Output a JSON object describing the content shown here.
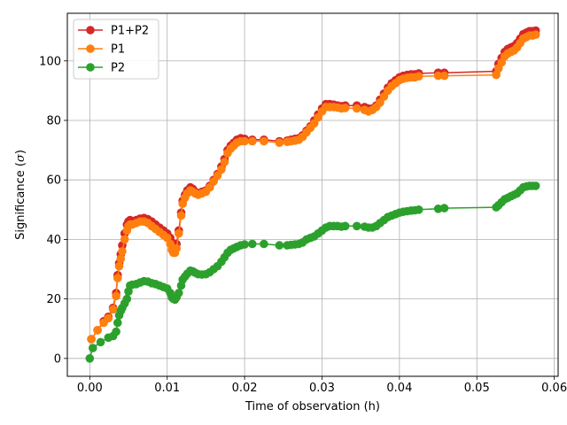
{
  "chart_data": {
    "type": "line",
    "title": "",
    "xlabel": "Time of observation (h)",
    "ylabel_prefix": "Significance (",
    "ylabel_symbol": "σ",
    "ylabel_suffix": ")",
    "xlim": [
      -0.0029,
      0.0605
    ],
    "ylim": [
      -6,
      116
    ],
    "xticks": [
      0.0,
      0.01,
      0.02,
      0.03,
      0.04,
      0.05,
      0.06
    ],
    "xtick_labels": [
      "0.00",
      "0.01",
      "0.02",
      "0.03",
      "0.04",
      "0.05",
      "0.06"
    ],
    "yticks": [
      0,
      20,
      40,
      60,
      80,
      100
    ],
    "ytick_labels": [
      "0",
      "20",
      "40",
      "60",
      "80",
      "100"
    ],
    "grid": true,
    "legend_position": "top-left",
    "series": [
      {
        "name": "P1+P2",
        "color": "#d62728",
        "x": [
          0.0002,
          0.001,
          0.0018,
          0.0024,
          0.003,
          0.0034,
          0.0036,
          0.0038,
          0.004,
          0.0042,
          0.0045,
          0.0048,
          0.005,
          0.0052,
          0.0055,
          0.006,
          0.0065,
          0.007,
          0.0075,
          0.008,
          0.0085,
          0.009,
          0.0095,
          0.01,
          0.0104,
          0.0106,
          0.0108,
          0.011,
          0.0112,
          0.0115,
          0.0118,
          0.012,
          0.0123,
          0.0126,
          0.013,
          0.0133,
          0.0136,
          0.014,
          0.0145,
          0.015,
          0.0155,
          0.016,
          0.0165,
          0.017,
          0.0174,
          0.0178,
          0.0182,
          0.0186,
          0.019,
          0.0195,
          0.02,
          0.021,
          0.0225,
          0.0245,
          0.0255,
          0.026,
          0.0265,
          0.027,
          0.0275,
          0.028,
          0.0285,
          0.029,
          0.0295,
          0.03,
          0.0305,
          0.031,
          0.0315,
          0.032,
          0.0325,
          0.033,
          0.0345,
          0.0355,
          0.036,
          0.0365,
          0.037,
          0.0375,
          0.038,
          0.0385,
          0.039,
          0.0395,
          0.04,
          0.0405,
          0.041,
          0.0415,
          0.042,
          0.0425,
          0.045,
          0.0458,
          0.0525,
          0.0528,
          0.0532,
          0.0536,
          0.054,
          0.0544,
          0.0548,
          0.0552,
          0.0556,
          0.056,
          0.0564,
          0.0568,
          0.0572,
          0.0576
        ],
        "y": [
          6.5,
          9.5,
          12.5,
          14.0,
          17.0,
          22.0,
          28.0,
          32.0,
          35.0,
          38.0,
          42.0,
          45.0,
          46.0,
          46.5,
          46.2,
          46.5,
          47.0,
          47.2,
          46.8,
          46.0,
          45.0,
          44.0,
          43.0,
          42.0,
          40.5,
          39.0,
          38.0,
          37.5,
          38.5,
          43.0,
          49.0,
          53.0,
          55.0,
          56.5,
          57.5,
          57.0,
          56.0,
          55.5,
          56.0,
          56.5,
          58.0,
          60.0,
          62.0,
          64.5,
          67.0,
          70.0,
          71.5,
          72.5,
          73.5,
          74.0,
          73.8,
          73.5,
          73.5,
          73.0,
          73.2,
          73.5,
          73.8,
          74.0,
          75.0,
          76.5,
          78.0,
          80.0,
          82.0,
          84.0,
          85.5,
          85.5,
          85.3,
          85.0,
          84.8,
          85.0,
          85.0,
          84.5,
          84.0,
          84.0,
          85.0,
          87.0,
          89.0,
          91.0,
          92.5,
          93.5,
          94.5,
          95.0,
          95.3,
          95.5,
          95.5,
          95.8,
          96.0,
          96.0,
          96.5,
          99.0,
          101.0,
          103.0,
          104.0,
          104.5,
          105.0,
          106.0,
          107.5,
          109.0,
          109.5,
          110.0,
          110.0,
          110.2
        ]
      },
      {
        "name": "P1",
        "color": "#ff7f0e",
        "x": [
          0.0002,
          0.001,
          0.0018,
          0.0024,
          0.003,
          0.0034,
          0.0036,
          0.0038,
          0.004,
          0.0042,
          0.0045,
          0.0048,
          0.005,
          0.0052,
          0.0055,
          0.006,
          0.0065,
          0.007,
          0.0075,
          0.008,
          0.0085,
          0.009,
          0.0095,
          0.01,
          0.0104,
          0.0106,
          0.0108,
          0.011,
          0.0112,
          0.0115,
          0.0118,
          0.012,
          0.0123,
          0.0126,
          0.013,
          0.0133,
          0.0136,
          0.014,
          0.0145,
          0.015,
          0.0155,
          0.016,
          0.0165,
          0.017,
          0.0174,
          0.0178,
          0.0182,
          0.0186,
          0.019,
          0.0195,
          0.02,
          0.021,
          0.0225,
          0.0245,
          0.0255,
          0.026,
          0.0265,
          0.027,
          0.0275,
          0.028,
          0.0285,
          0.029,
          0.0295,
          0.03,
          0.0305,
          0.031,
          0.0315,
          0.032,
          0.0325,
          0.033,
          0.0345,
          0.0355,
          0.036,
          0.0365,
          0.037,
          0.0375,
          0.038,
          0.0385,
          0.039,
          0.0395,
          0.04,
          0.0405,
          0.041,
          0.0415,
          0.042,
          0.0425,
          0.045,
          0.0458,
          0.0525,
          0.0528,
          0.0532,
          0.0536,
          0.054,
          0.0544,
          0.0548,
          0.0552,
          0.0556,
          0.056,
          0.0564,
          0.0568,
          0.0572,
          0.0576
        ],
        "y": [
          6.5,
          9.5,
          12.0,
          13.5,
          16.5,
          21.0,
          27.0,
          31.0,
          33.5,
          36.0,
          40.0,
          43.0,
          44.5,
          45.0,
          45.0,
          45.5,
          46.0,
          46.0,
          45.5,
          44.5,
          43.5,
          42.5,
          41.5,
          40.5,
          38.5,
          36.5,
          35.5,
          35.5,
          37.0,
          42.0,
          48.0,
          52.0,
          54.0,
          55.5,
          56.5,
          56.0,
          55.5,
          55.0,
          55.5,
          56.0,
          57.5,
          59.5,
          61.5,
          63.5,
          66.0,
          69.0,
          70.5,
          71.5,
          72.5,
          73.0,
          73.0,
          73.0,
          73.0,
          72.5,
          72.8,
          73.0,
          73.2,
          73.5,
          74.5,
          76.0,
          77.5,
          79.0,
          81.0,
          83.0,
          84.5,
          84.5,
          84.5,
          84.3,
          84.0,
          84.2,
          84.0,
          83.5,
          83.0,
          83.5,
          84.5,
          86.0,
          88.0,
          90.0,
          91.5,
          92.5,
          93.5,
          94.0,
          94.3,
          94.5,
          94.5,
          94.8,
          95.0,
          95.0,
          95.3,
          97.5,
          99.5,
          101.5,
          102.5,
          103.0,
          103.5,
          104.5,
          106.0,
          107.5,
          108.0,
          108.5,
          108.5,
          108.8
        ]
      },
      {
        "name": "P2",
        "color": "#2ca02c",
        "x": [
          0.0,
          0.0004,
          0.0014,
          0.0024,
          0.003,
          0.0034,
          0.0036,
          0.0038,
          0.004,
          0.0042,
          0.0045,
          0.0048,
          0.005,
          0.0052,
          0.0055,
          0.006,
          0.0065,
          0.007,
          0.0075,
          0.008,
          0.0085,
          0.009,
          0.0095,
          0.01,
          0.0104,
          0.0106,
          0.0108,
          0.011,
          0.0112,
          0.0115,
          0.0118,
          0.012,
          0.0123,
          0.0126,
          0.013,
          0.0133,
          0.0136,
          0.014,
          0.0145,
          0.015,
          0.0155,
          0.016,
          0.0165,
          0.017,
          0.0174,
          0.0178,
          0.0182,
          0.0186,
          0.019,
          0.0195,
          0.02,
          0.021,
          0.0225,
          0.0245,
          0.0255,
          0.026,
          0.0265,
          0.027,
          0.0275,
          0.028,
          0.0285,
          0.029,
          0.0295,
          0.03,
          0.0305,
          0.031,
          0.0315,
          0.032,
          0.0325,
          0.033,
          0.0345,
          0.0355,
          0.036,
          0.0365,
          0.037,
          0.0375,
          0.038,
          0.0385,
          0.039,
          0.0395,
          0.04,
          0.0405,
          0.041,
          0.0415,
          0.042,
          0.0425,
          0.045,
          0.0458,
          0.0525,
          0.0528,
          0.0532,
          0.0536,
          0.054,
          0.0544,
          0.0548,
          0.0552,
          0.0556,
          0.056,
          0.0564,
          0.0568,
          0.0572,
          0.0576
        ],
        "y": [
          0.0,
          3.5,
          5.5,
          7.0,
          7.5,
          9.0,
          12.0,
          14.5,
          16.0,
          17.0,
          18.5,
          20.0,
          22.5,
          24.5,
          24.8,
          25.0,
          25.5,
          26.0,
          25.8,
          25.3,
          25.0,
          24.5,
          24.0,
          23.5,
          22.0,
          20.5,
          20.0,
          19.8,
          20.5,
          22.0,
          24.5,
          26.5,
          27.5,
          28.5,
          29.5,
          29.3,
          28.8,
          28.3,
          28.2,
          28.3,
          29.0,
          30.0,
          31.0,
          32.5,
          34.0,
          35.5,
          36.5,
          37.0,
          37.5,
          38.0,
          38.3,
          38.5,
          38.5,
          38.0,
          38.0,
          38.2,
          38.3,
          38.5,
          39.0,
          40.0,
          40.5,
          41.0,
          42.0,
          43.0,
          44.0,
          44.5,
          44.5,
          44.5,
          44.3,
          44.5,
          44.5,
          44.3,
          44.0,
          44.0,
          44.5,
          45.5,
          46.5,
          47.5,
          48.0,
          48.5,
          49.0,
          49.3,
          49.5,
          49.7,
          49.8,
          50.0,
          50.3,
          50.5,
          50.8,
          51.5,
          52.5,
          53.5,
          54.0,
          54.5,
          55.0,
          55.5,
          56.5,
          57.5,
          57.8,
          58.0,
          58.0,
          58.0
        ]
      }
    ]
  }
}
